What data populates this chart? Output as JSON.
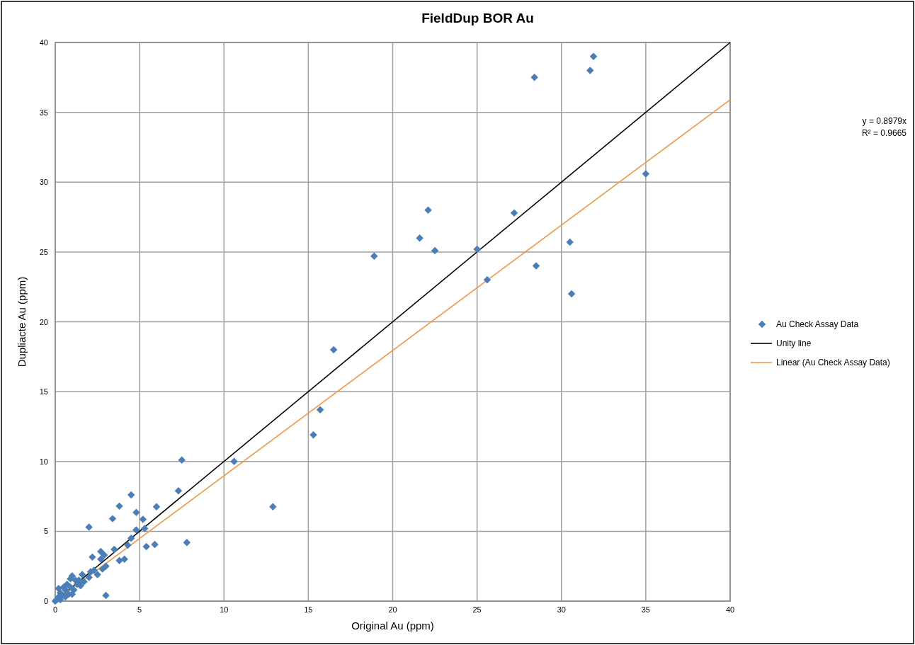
{
  "chart_data": {
    "type": "scatter",
    "title": "FieldDup BOR Au",
    "xlabel": "Original Au (ppm)",
    "ylabel": "Dupliacte Au (ppm)",
    "xlim": [
      0,
      40
    ],
    "ylim": [
      0,
      40
    ],
    "xticks": [
      0,
      5,
      10,
      15,
      20,
      25,
      30,
      35,
      40
    ],
    "yticks": [
      0,
      5,
      10,
      15,
      20,
      25,
      30,
      35,
      40
    ],
    "grid": true,
    "legend": "right",
    "annotations": [
      "y = 0.8979x",
      "R² = 0.9665"
    ],
    "series": [
      {
        "name": "Au Check Assay Data",
        "marker": "diamond",
        "color": "#4a7ebb",
        "x": [
          35,
          31.9,
          31.7,
          28.4,
          22.1,
          21.6,
          22.5,
          18.9,
          27.2,
          25,
          25.6,
          30.5,
          28.5,
          30.6,
          16.5,
          15.7,
          15.3,
          10.6,
          7.5,
          12.9,
          7.3,
          7.8,
          6,
          5.9,
          5.4,
          5.3,
          5.2,
          4.8,
          4.8,
          4.5,
          4.5,
          4.3,
          4.1,
          3.8,
          3.8,
          3.4,
          3.5,
          3,
          2,
          2.2,
          2.7,
          2.9,
          2.7,
          3,
          2.8,
          2.5,
          2.3,
          2,
          2.1,
          1.6,
          1.5,
          1.2,
          1,
          0.9,
          0.7,
          0.5,
          0.6,
          0.3,
          0.2,
          0.1,
          0,
          0.4,
          1.1,
          0.8,
          1.3,
          0.2,
          0.6,
          0.9,
          1.4,
          1.7,
          0.3,
          1
        ],
        "values": [
          30.6,
          39,
          38,
          37.5,
          28,
          26,
          25.1,
          24.7,
          27.8,
          25.2,
          23,
          25.7,
          24,
          22,
          18,
          13.7,
          11.9,
          10,
          10.1,
          6.75,
          7.9,
          4.2,
          6.75,
          4.05,
          3.9,
          5.2,
          5.85,
          6.35,
          5.1,
          7.6,
          4.5,
          4,
          3,
          6.8,
          2.9,
          5.9,
          3.7,
          0.4,
          5.3,
          3.15,
          3.55,
          3.3,
          3,
          2.5,
          2.3,
          1.9,
          2.2,
          1.7,
          2.1,
          1.9,
          1.1,
          1.5,
          1.8,
          1.6,
          1.2,
          1,
          0.3,
          0.6,
          0.9,
          0.1,
          0,
          0.4,
          0.8,
          0.5,
          1.2,
          0.3,
          0.8,
          1,
          1.5,
          1.4,
          0.1,
          0.5
        ]
      },
      {
        "name": "Unity line",
        "type": "line",
        "marker": "none",
        "color": "#000000",
        "line_style": "solid",
        "x": [
          0,
          40
        ],
        "values": [
          0,
          40
        ]
      },
      {
        "name": "Linear (Au Check Assay Data)",
        "type": "line",
        "marker": "none",
        "color": "#f79646",
        "line_style": "solid",
        "x": [
          0,
          40
        ],
        "values": [
          0,
          35.9
        ]
      }
    ]
  }
}
